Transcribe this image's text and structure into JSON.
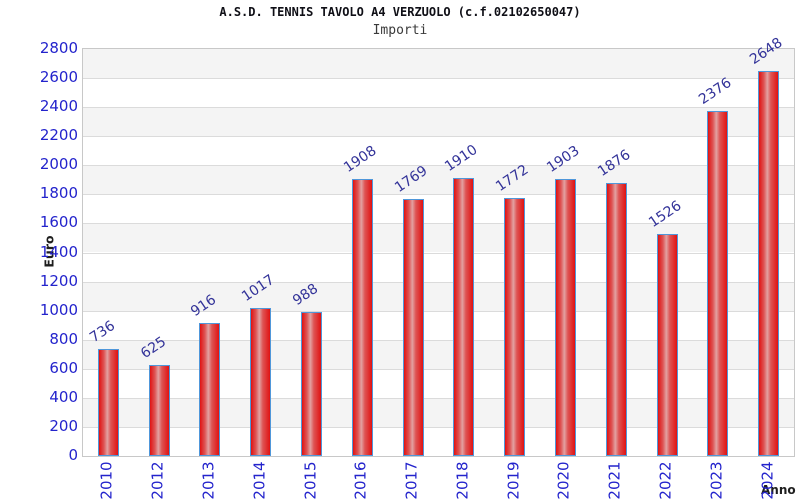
{
  "header": {
    "title": "A.S.D. TENNIS TAVOLO A4 VERZUOLO (c.f.02102650047)",
    "subtitle": "Importi"
  },
  "axes": {
    "y_title": "Euro",
    "x_title": "Anno"
  },
  "colors": {
    "tick_label_blue": "#2323cc",
    "value_label_blue": "#333399",
    "bar_red": "#e01212",
    "bar_border_blue": "#4f97da",
    "band_gray": "#f4f4f4",
    "grid_line": "#dbdbdb",
    "plot_border": "#c8c8c8",
    "title": "#0f0f16",
    "subtitle": "#3a3a3a",
    "axis_title": "#1e1e1e",
    "background": "#ffffff"
  },
  "chart_data": {
    "type": "bar",
    "title": "A.S.D. TENNIS TAVOLO A4 VERZUOLO (c.f.02102650047)",
    "subtitle": "Importi",
    "xlabel": "Anno",
    "ylabel": "Euro",
    "categories": [
      "2010",
      "2012",
      "2013",
      "2014",
      "2015",
      "2016",
      "2017",
      "2018",
      "2019",
      "2020",
      "2021",
      "2022",
      "2023",
      "2024"
    ],
    "values": [
      736,
      625,
      916,
      1017,
      988,
      1908,
      1769,
      1910,
      1772,
      1903,
      1876,
      1526,
      2376,
      2648
    ],
    "ylim": [
      0,
      2800
    ],
    "ytick_step": 200,
    "yticks": [
      0,
      200,
      400,
      600,
      800,
      1000,
      1200,
      1400,
      1600,
      1800,
      2000,
      2200,
      2400,
      2600,
      2800
    ],
    "grid": "horizontal gridlines every 200 with alternating gray/white bands",
    "legend": "none",
    "value_labels": "above bars, rotated, blue",
    "xtick_rotation": -90
  }
}
